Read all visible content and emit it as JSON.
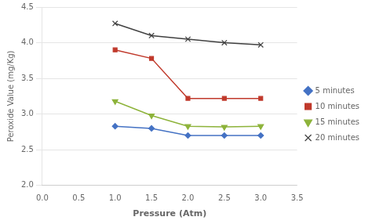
{
  "chart_data": {
    "type": "line",
    "xlabel": "Pressure (Atm)",
    "ylabel": "Peroxide Value (mg/Kg)",
    "x": [
      1.0,
      1.5,
      2.0,
      2.5,
      3.0
    ],
    "series": [
      {
        "name": "5 minutes",
        "color": "#4472C4",
        "marker": "diamond",
        "values": [
          2.83,
          2.8,
          2.7,
          2.7,
          2.7
        ]
      },
      {
        "name": "10 minutes",
        "color": "#C0392B",
        "marker": "square",
        "values": [
          3.9,
          3.78,
          3.22,
          3.22,
          3.22
        ]
      },
      {
        "name": "15 minutes",
        "color": "#8DB33A",
        "marker": "triangle_down",
        "values": [
          3.18,
          2.98,
          2.83,
          2.82,
          2.83
        ]
      },
      {
        "name": "20 minutes",
        "color": "#404040",
        "marker": "x",
        "values": [
          4.27,
          4.1,
          4.05,
          4.0,
          3.97
        ]
      }
    ],
    "xlim": [
      0,
      3.5
    ],
    "ylim": [
      2.0,
      4.5
    ],
    "xticks": [
      {
        "value": 0,
        "label": "0.0"
      },
      0.5,
      {
        "value": 1.0,
        "label": "1.0"
      },
      1.5,
      {
        "value": 2.0,
        "label": "2.0"
      },
      2.5,
      {
        "value": 3.0,
        "label": "3.0"
      },
      3.5
    ],
    "yticks": [
      {
        "value": 2.0,
        "label": "2.0"
      },
      2.5,
      {
        "value": 3.0,
        "label": "3.0"
      },
      3.5,
      {
        "value": 4.0,
        "label": "4.0"
      },
      4.5
    ],
    "grid": "y",
    "legend": "right"
  }
}
